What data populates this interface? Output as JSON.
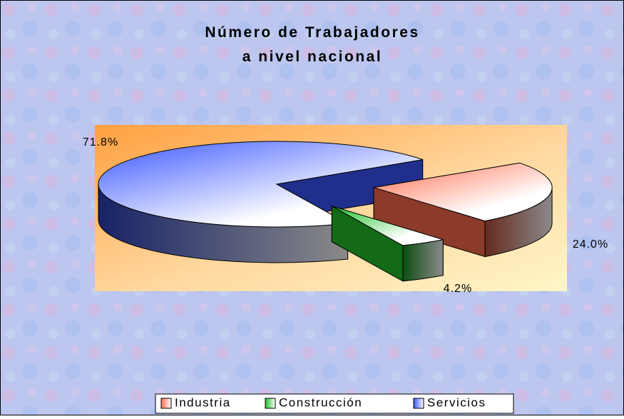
{
  "chart_data": {
    "type": "pie3d",
    "title": [
      "Número de Trabajadores",
      "a nivel nacional"
    ],
    "categories": [
      "Industria",
      "Construcción",
      "Servicios"
    ],
    "values": [
      24.0,
      4.2,
      71.8
    ],
    "value_labels": [
      "24.0%",
      "4.2%",
      "71.8%"
    ],
    "colors": [
      "#ff6a4a",
      "#22c02a",
      "#3a56ff"
    ],
    "legend": "bottom"
  }
}
